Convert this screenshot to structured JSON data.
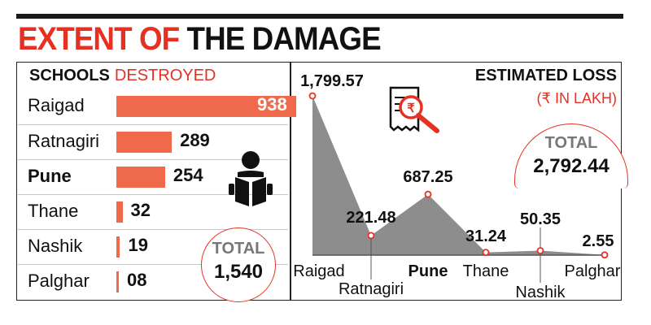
{
  "headline": {
    "part1": "EXTENT OF",
    "part2": "THE DAMAGE"
  },
  "schools": {
    "title_bold": "SCHOOLS",
    "title_red": "DESTROYED",
    "rows": [
      {
        "label": "Raigad",
        "value": 938,
        "display": "938",
        "bold": false
      },
      {
        "label": "Ratnagiri",
        "value": 289,
        "display": "289",
        "bold": false
      },
      {
        "label": "Pune",
        "value": 254,
        "display": "254",
        "bold": true
      },
      {
        "label": "Thane",
        "value": 32,
        "display": "32",
        "bold": false
      },
      {
        "label": "Nashik",
        "value": 19,
        "display": "19",
        "bold": false
      },
      {
        "label": "Palghar",
        "value": 8,
        "display": "08",
        "bold": false
      }
    ],
    "total_label": "TOTAL",
    "total_value": "1,540"
  },
  "loss": {
    "title": "ESTIMATED LOSS",
    "unit": "(₹ IN LAKH)",
    "total_label": "TOTAL",
    "total_value": "2,792.44"
  },
  "chart_data": [
    {
      "type": "bar",
      "title": "SCHOOLS DESTROYED",
      "categories": [
        "Raigad",
        "Ratnagiri",
        "Pune",
        "Thane",
        "Nashik",
        "Palghar"
      ],
      "values": [
        938,
        289,
        254,
        32,
        19,
        8
      ],
      "total": 1540
    },
    {
      "type": "area",
      "title": "ESTIMATED LOSS",
      "ylabel": "₹ IN LAKH",
      "categories": [
        "Raigad",
        "Ratnagiri",
        "Pune",
        "Thane",
        "Nashik",
        "Palghar"
      ],
      "values": [
        1799.57,
        221.48,
        687.25,
        31.24,
        50.35,
        2.55
      ],
      "value_labels": [
        "1,799.57",
        "221.48",
        "687.25",
        "31.24",
        "50.35",
        "2.55"
      ],
      "total": 2792.44,
      "colors": {
        "area": "#8d8d8d",
        "marker": "#e63022",
        "bar": "#ef6a4c"
      }
    }
  ]
}
